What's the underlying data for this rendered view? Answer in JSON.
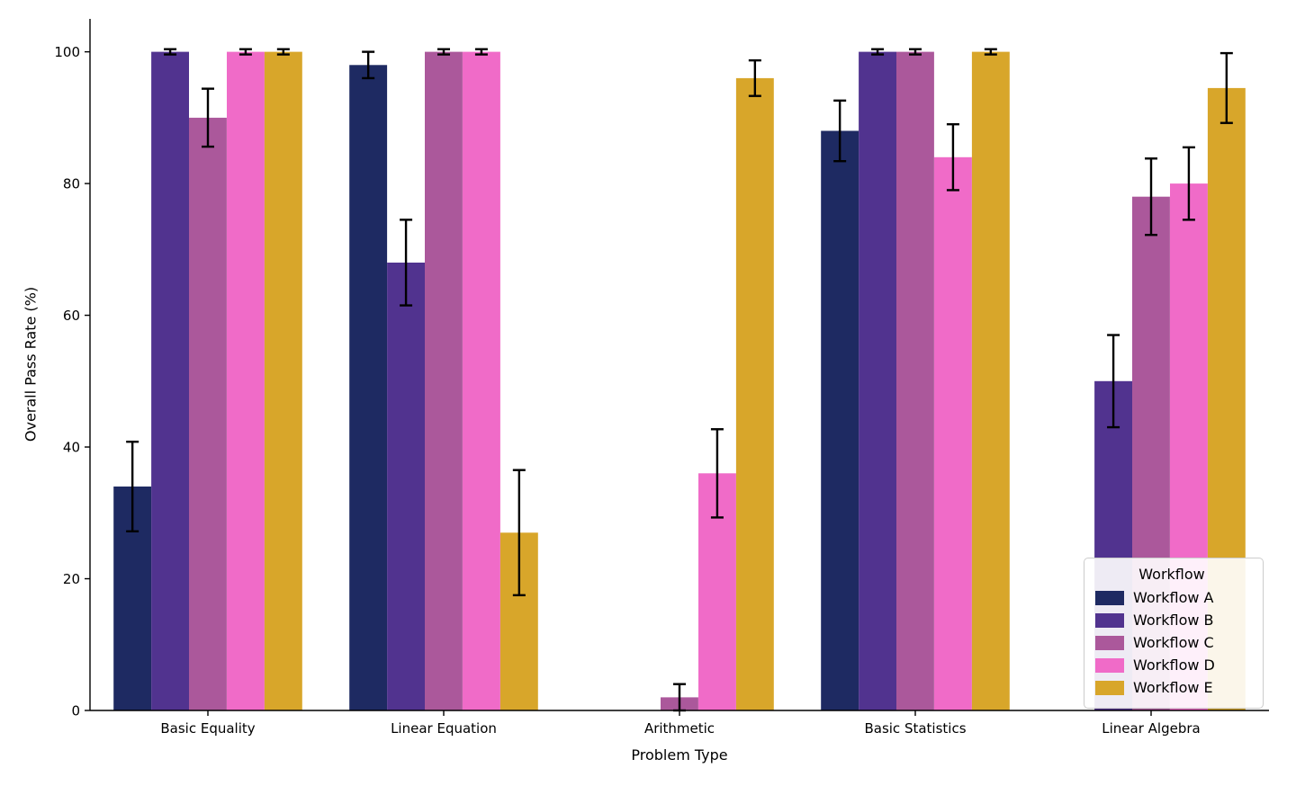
{
  "chart_data": {
    "type": "bar",
    "title": "",
    "xlabel": "Problem Type",
    "ylabel": "Overall Pass Rate (%)",
    "ylim": [
      0,
      105
    ],
    "yticks": [
      0,
      20,
      40,
      60,
      80,
      100
    ],
    "grid": false,
    "legend_title": "Workflow",
    "legend_position": "lower right",
    "categories": [
      "Basic Equality",
      "Linear Equation",
      "Arithmetic",
      "Basic Statistics",
      "Linear Algebra"
    ],
    "series": [
      {
        "name": "Workflow A",
        "color": "#1e2a62",
        "values": [
          34,
          98,
          0,
          88,
          0
        ],
        "errors": [
          6.8,
          2.0,
          0,
          4.6,
          0
        ]
      },
      {
        "name": "Workflow B",
        "color": "#51338f",
        "values": [
          100,
          68,
          0,
          100,
          50
        ],
        "errors": [
          0.4,
          6.5,
          0,
          0.4,
          7.0
        ]
      },
      {
        "name": "Workflow C",
        "color": "#ab589b",
        "values": [
          90,
          100,
          2,
          100,
          78
        ],
        "errors": [
          4.4,
          0.4,
          2.0,
          0.4,
          5.8
        ]
      },
      {
        "name": "Workflow D",
        "color": "#f06bc8",
        "values": [
          100,
          100,
          36,
          84,
          80
        ],
        "errors": [
          0.4,
          0.4,
          6.7,
          5.0,
          5.5
        ]
      },
      {
        "name": "Workflow E",
        "color": "#d8a62a",
        "values": [
          100,
          27,
          96,
          100,
          94.5
        ],
        "errors": [
          0.4,
          9.5,
          2.7,
          0.4,
          5.3
        ]
      }
    ],
    "error_bar_color": "#000000"
  }
}
